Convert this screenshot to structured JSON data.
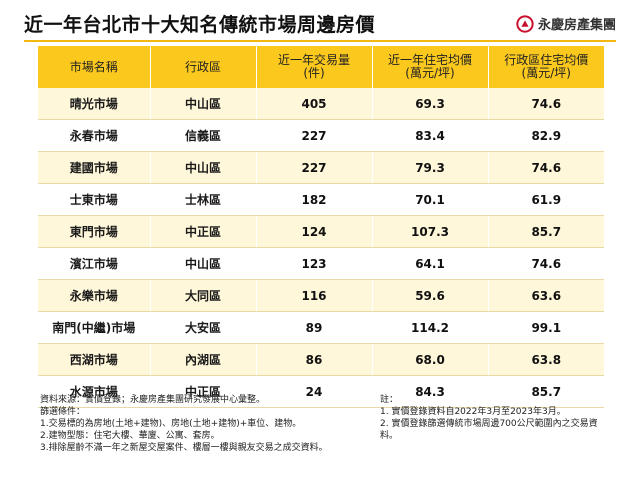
{
  "header": {
    "title": "近一年台北市十大知名傳統市場周邊房價",
    "brand_name": "永慶房產集團"
  },
  "table": {
    "columns": [
      {
        "line1": "市場名稱",
        "line2": ""
      },
      {
        "line1": "行政區",
        "line2": ""
      },
      {
        "line1": "近一年交易量",
        "line2": "(件)"
      },
      {
        "line1": "近一年住宅均價",
        "line2": "(萬元/坪)"
      },
      {
        "line1": "行政區住宅均價",
        "line2": "(萬元/坪)"
      }
    ],
    "rows": [
      {
        "market": "晴光市場",
        "district": "中山區",
        "volume": "405",
        "avg_price": "69.3",
        "district_price": "74.6"
      },
      {
        "market": "永春市場",
        "district": "信義區",
        "volume": "227",
        "avg_price": "83.4",
        "district_price": "82.9"
      },
      {
        "market": "建國市場",
        "district": "中山區",
        "volume": "227",
        "avg_price": "79.3",
        "district_price": "74.6"
      },
      {
        "market": "士東市場",
        "district": "士林區",
        "volume": "182",
        "avg_price": "70.1",
        "district_price": "61.9"
      },
      {
        "market": "東門市場",
        "district": "中正區",
        "volume": "124",
        "avg_price": "107.3",
        "district_price": "85.7"
      },
      {
        "market": "濱江市場",
        "district": "中山區",
        "volume": "123",
        "avg_price": "64.1",
        "district_price": "74.6"
      },
      {
        "market": "永樂市場",
        "district": "大同區",
        "volume": "116",
        "avg_price": "59.6",
        "district_price": "63.6"
      },
      {
        "market": "南門(中繼)市場",
        "district": "大安區",
        "volume": "89",
        "avg_price": "114.2",
        "district_price": "99.1"
      },
      {
        "market": "西湖市場",
        "district": "內湖區",
        "volume": "86",
        "avg_price": "68.0",
        "district_price": "63.8"
      },
      {
        "market": "水源市場",
        "district": "中正區",
        "volume": "24",
        "avg_price": "84.3",
        "district_price": "85.7"
      }
    ]
  },
  "footer": {
    "source": "資料來源：實價登錄；永慶房產集團研究發展中心彙整。",
    "criteria_title": "篩選條件：",
    "criteria": [
      "1.交易標的為房地(土地+建物)、房地(土地+建物)+車位、建物。",
      "2.建物型態：住宅大樓、華廈、公寓、套房。",
      "3.排除屋齡不滿一年之新屋交屋案件、樓層一樓與親友交易之成交資料。"
    ],
    "notes_title": "註：",
    "notes": [
      "1. 實價登錄資料自2022年3月至2023年3月。",
      "2. 實價登錄篩選傳統市場周邊700公尺範圍內之交易資料。"
    ]
  },
  "colors": {
    "header_yellow": "#fbc81e",
    "row_tint": "#fff7d9",
    "brand_red": "#c8102e"
  }
}
